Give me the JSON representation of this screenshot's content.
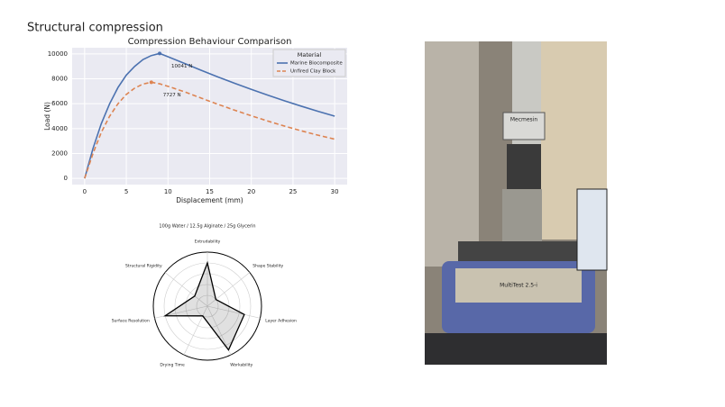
{
  "header": {
    "title": "Structural compression"
  },
  "chart_data": [
    {
      "type": "line",
      "title": "Compression Behaviour Comparison",
      "x_label": "Displacement (mm)",
      "y_label": "Load (N)",
      "x": [
        0,
        1,
        2,
        3,
        4,
        5,
        6,
        7,
        8,
        9,
        10,
        12,
        14,
        16,
        18,
        20,
        22,
        24,
        26,
        28,
        30
      ],
      "series": [
        {
          "name": "Marine Biocomposite",
          "color": "#4c72b0",
          "dash": false,
          "values": [
            0,
            2400,
            4400,
            6000,
            7300,
            8300,
            9000,
            9550,
            9870,
            10041,
            9780,
            9230,
            8680,
            8150,
            7640,
            7150,
            6680,
            6230,
            5800,
            5390,
            5000
          ]
        },
        {
          "name": "Unfired Clay Block",
          "color": "#dd8452",
          "dash": true,
          "values": [
            0,
            2000,
            3700,
            5000,
            6000,
            6750,
            7250,
            7580,
            7727,
            7600,
            7400,
            6950,
            6450,
            5950,
            5480,
            5030,
            4600,
            4200,
            3820,
            3470,
            3150
          ]
        }
      ],
      "annotations": [
        {
          "series": 0,
          "index": 9,
          "text": "10041 N"
        },
        {
          "series": 1,
          "index": 8,
          "text": "7727 N"
        }
      ],
      "legend_title": "Material",
      "legend": "upper right",
      "grid": true,
      "xlim": [
        -1.5,
        31.5
      ],
      "xticks": [
        0,
        5,
        10,
        15,
        20,
        25,
        30
      ],
      "ylim": [
        -500,
        10500
      ],
      "yticks": [
        0,
        2000,
        4000,
        6000,
        8000,
        10000
      ]
    },
    {
      "type": "radar",
      "title": "100g Water / 12.5g Alginate / 25g Glycerin",
      "categories": [
        "Extrudability",
        "Shape Stability",
        "Layer Adhesion",
        "Workability",
        "Drying Time",
        "Surface Resolution",
        "Structural Rigidity"
      ],
      "values": [
        8,
        2,
        7,
        9,
        2,
        8,
        3
      ],
      "color": "#000000",
      "rlim": [
        0,
        10
      ],
      "rticks": [
        2,
        4,
        6,
        8,
        10
      ]
    }
  ],
  "photo": {
    "labels": [
      "Mecmesin",
      "MultiTest 2.5-i"
    ]
  }
}
